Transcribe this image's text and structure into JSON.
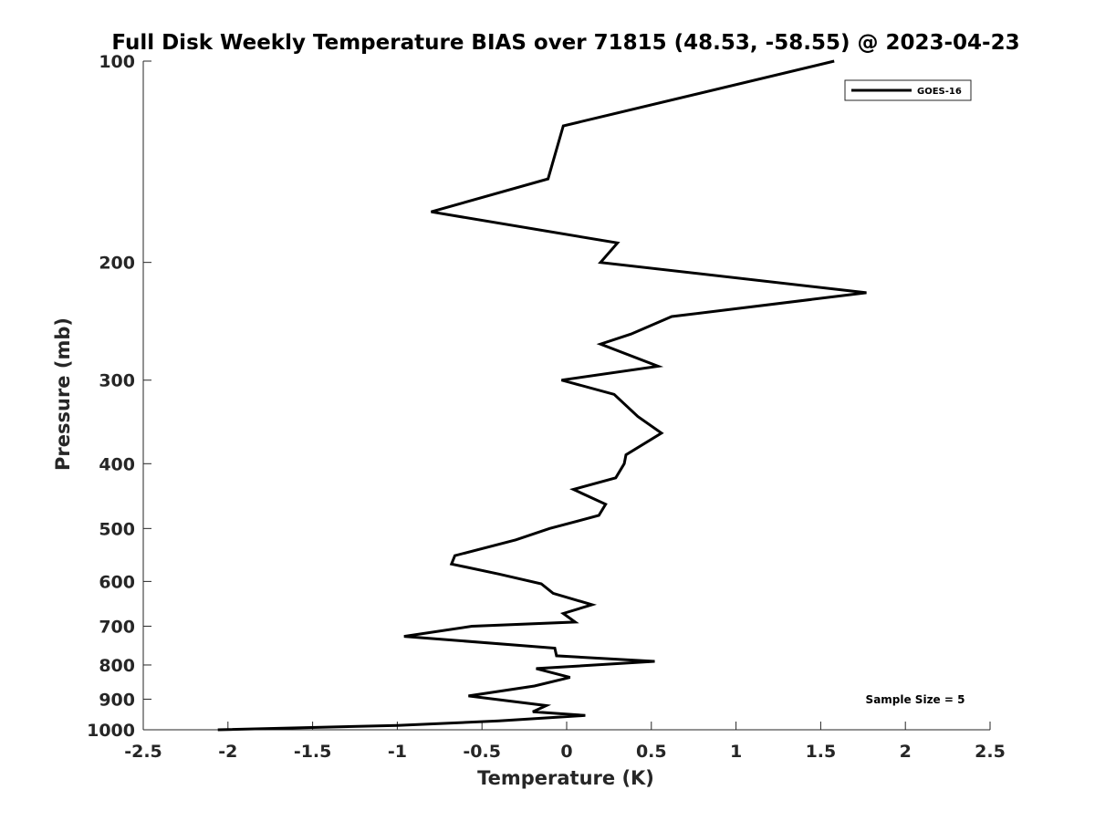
{
  "chart_data": {
    "type": "line",
    "title": "Full Disk Weekly Temperature BIAS over 71815 (48.53, -58.55) @ 2023-04-23",
    "xlabel": "Temperature (K)",
    "ylabel": "Pressure (mb)",
    "xlim": [
      -2.5,
      2.5
    ],
    "ylim": [
      100,
      1000
    ],
    "y_scale": "log",
    "y_reversed": true,
    "x_ticks": [
      -2.5,
      -2,
      -1.5,
      -1,
      -0.5,
      0,
      0.5,
      1,
      1.5,
      2,
      2.5
    ],
    "x_tick_labels": [
      "-2.5",
      "-2",
      "-1.5",
      "-1",
      "-0.5",
      "0",
      "0.5",
      "1",
      "1.5",
      "2",
      "2.5"
    ],
    "y_ticks": [
      100,
      200,
      300,
      400,
      500,
      600,
      700,
      800,
      900,
      1000
    ],
    "y_tick_labels": [
      "100",
      "200",
      "300",
      "400",
      "500",
      "600",
      "700",
      "800",
      "900",
      "1000"
    ],
    "grid": false,
    "legend_position": "top-right",
    "series": [
      {
        "name": "GOES-16",
        "color": "#000000",
        "points": [
          [
            1.58,
            100
          ],
          [
            -0.02,
            125
          ],
          [
            -0.11,
            150
          ],
          [
            -0.8,
            168
          ],
          [
            0.3,
            187
          ],
          [
            0.2,
            200
          ],
          [
            1.77,
            222
          ],
          [
            0.62,
            241
          ],
          [
            0.38,
            256
          ],
          [
            0.2,
            265
          ],
          [
            0.54,
            286
          ],
          [
            -0.03,
            300
          ],
          [
            0.28,
            315
          ],
          [
            0.42,
            340
          ],
          [
            0.56,
            360
          ],
          [
            0.35,
            388
          ],
          [
            0.34,
            400
          ],
          [
            0.29,
            420
          ],
          [
            0.04,
            437
          ],
          [
            0.23,
            460
          ],
          [
            0.19,
            478
          ],
          [
            -0.1,
            500
          ],
          [
            -0.3,
            520
          ],
          [
            -0.66,
            549
          ],
          [
            -0.68,
            565
          ],
          [
            -0.4,
            585
          ],
          [
            -0.15,
            605
          ],
          [
            -0.08,
            625
          ],
          [
            0.15,
            650
          ],
          [
            -0.02,
            670
          ],
          [
            0.05,
            690
          ],
          [
            -0.56,
            700
          ],
          [
            -0.96,
            725
          ],
          [
            -0.07,
            755
          ],
          [
            -0.06,
            775
          ],
          [
            0.52,
            790
          ],
          [
            -0.18,
            810
          ],
          [
            0.02,
            835
          ],
          [
            -0.19,
            860
          ],
          [
            -0.58,
            890
          ],
          [
            -0.12,
            920
          ],
          [
            -0.2,
            940
          ],
          [
            0.11,
            952
          ],
          [
            -0.4,
            970
          ],
          [
            -1.0,
            985
          ],
          [
            -2.06,
            1000
          ]
        ]
      }
    ],
    "annotation": "Sample Size = 5"
  }
}
